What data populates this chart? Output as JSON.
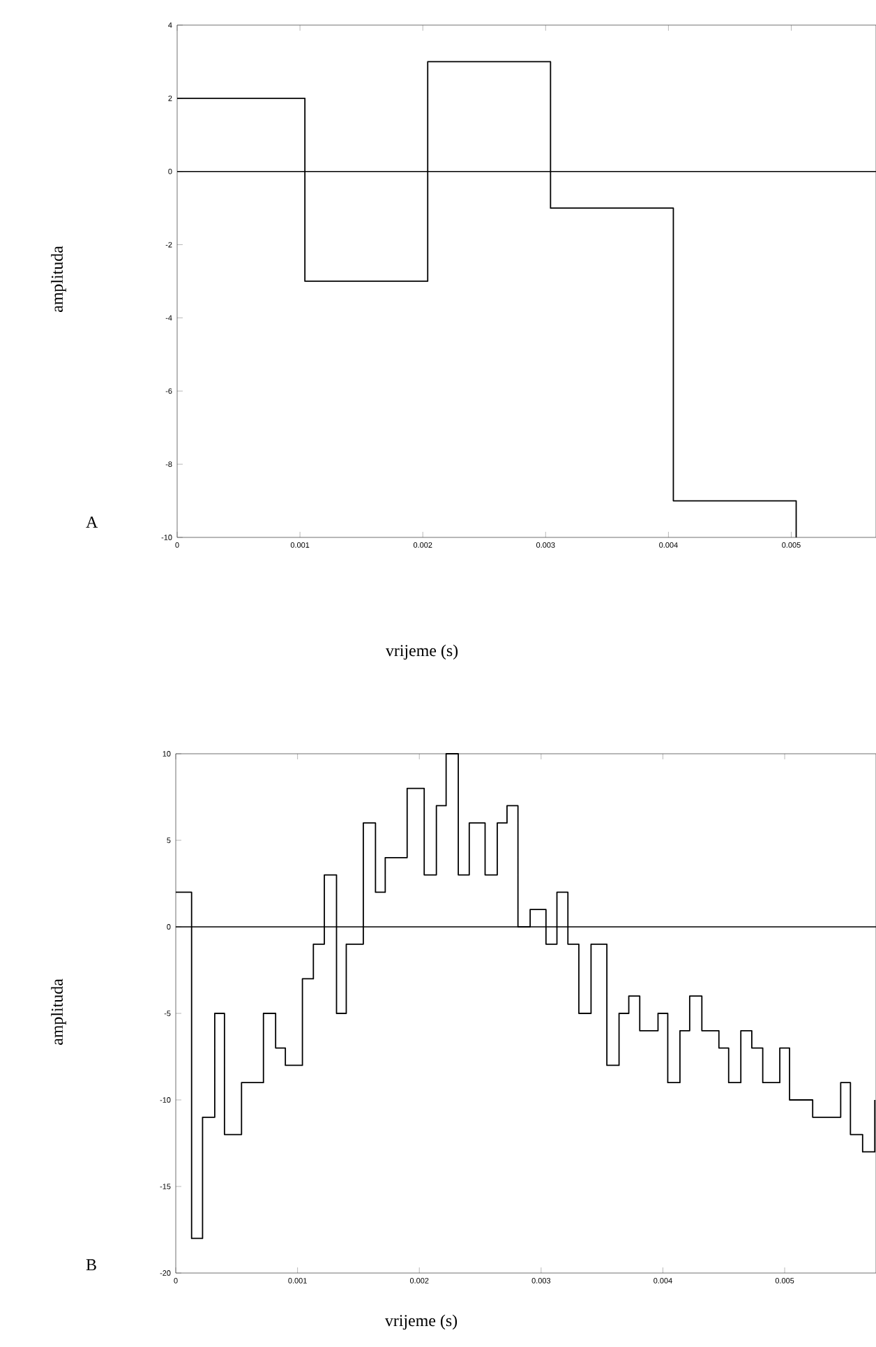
{
  "chart_data": [
    {
      "type": "step",
      "xlabel": "vrijeme (s)",
      "ylabel": "amplituda",
      "annotations": [
        "A"
      ],
      "color": "#000000",
      "x": [
        0,
        0.00104,
        0.00204,
        0.00304,
        0.00404,
        0.00504
      ],
      "values": [
        2,
        -3,
        3,
        -1,
        -9,
        -10
      ],
      "xlim": [
        0,
        0.00569
      ],
      "ylim": [
        -10,
        4
      ],
      "xticks": [
        0,
        0.001,
        0.002,
        0.003,
        0.004,
        0.005
      ],
      "yticks": [
        -10,
        -8,
        -6,
        -4,
        -2,
        0,
        2,
        4
      ],
      "ref_lines": [
        {
          "axis": "y",
          "value": 0
        }
      ]
    },
    {
      "type": "step",
      "xlabel": "vrijeme (s)",
      "ylabel": "amplituda",
      "annotations": [
        "B"
      ],
      "color": "#000000",
      "x": [
        0,
        0.00013,
        0.00022,
        0.00032,
        0.0004,
        0.00054,
        0.00072,
        0.00082,
        0.0009,
        0.00104,
        0.00113,
        0.00122,
        0.00132,
        0.0014,
        0.00154,
        0.00164,
        0.00172,
        0.0019,
        0.00204,
        0.00214,
        0.00222,
        0.00232,
        0.00241,
        0.00254,
        0.00264,
        0.00272,
        0.00281,
        0.00291,
        0.00304,
        0.00313,
        0.00322,
        0.00331,
        0.00341,
        0.00354,
        0.00364,
        0.00372,
        0.00381,
        0.00396,
        0.00404,
        0.00414,
        0.00422,
        0.00432,
        0.00446,
        0.00454,
        0.00464,
        0.00473,
        0.00482,
        0.00496,
        0.00504,
        0.00523,
        0.00546,
        0.00554,
        0.00564,
        0.00574
      ],
      "values": [
        2,
        -18,
        -11,
        -5,
        -12,
        -9,
        -5,
        -7,
        -8,
        -3,
        -1,
        3,
        -5,
        -1,
        6,
        2,
        4,
        8,
        3,
        7,
        10,
        3,
        6,
        3,
        6,
        7,
        0,
        1,
        -1,
        2,
        -1,
        -5,
        -1,
        -8,
        -5,
        -4,
        -6,
        -5,
        -9,
        -6,
        -4,
        -6,
        -7,
        -9,
        -6,
        -7,
        -9,
        -7,
        -10,
        -11,
        -9,
        -12,
        -13,
        -10
      ],
      "xlim": [
        0,
        0.00575
      ],
      "ylim": [
        -20,
        10
      ],
      "xticks": [
        0,
        0.001,
        0.002,
        0.003,
        0.004,
        0.005
      ],
      "yticks": [
        -20,
        -15,
        -10,
        -5,
        0,
        5,
        10
      ],
      "ref_lines": [
        {
          "axis": "y",
          "value": 0
        }
      ]
    }
  ]
}
